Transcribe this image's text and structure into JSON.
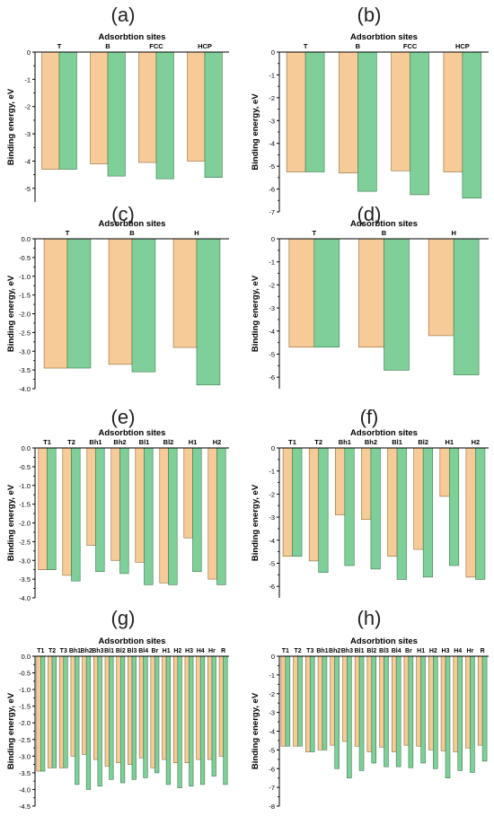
{
  "colors": {
    "bar_a": "#F7CB97",
    "bar_b": "#7FCF99",
    "bar_b_edge": "#3E7A50",
    "bar_a_edge": "#8A6A3A",
    "axis": "#000000"
  },
  "chart_data": [
    {
      "type": "bar",
      "panel_label": "(a)",
      "title": "Adsorbtion sites",
      "ylabel": "Binding energy, eV",
      "categories": [
        "T",
        "B",
        "FCC",
        "HCP"
      ],
      "ylim": [
        -5.5,
        0
      ],
      "yticks": [
        0,
        -1,
        -2,
        -3,
        -4,
        -5
      ],
      "series": [
        {
          "values": [
            -4.3,
            -4.1,
            -4.05,
            -4.0
          ]
        },
        {
          "values": [
            -4.3,
            -4.55,
            -4.65,
            -4.6
          ]
        }
      ]
    },
    {
      "type": "bar",
      "panel_label": "(b)",
      "title": "Adsorbtion sites",
      "ylabel": "Binding energy, eV",
      "categories": [
        "T",
        "B",
        "FCC",
        "HCP"
      ],
      "ylim": [
        -7,
        0
      ],
      "yticks": [
        0,
        -1,
        -2,
        -3,
        -4,
        -5,
        -6,
        -7
      ],
      "series": [
        {
          "values": [
            -5.25,
            -5.3,
            -5.2,
            -5.25
          ]
        },
        {
          "values": [
            -5.25,
            -6.1,
            -6.25,
            -6.4
          ]
        }
      ]
    },
    {
      "type": "bar",
      "panel_label": "(c)",
      "title": "Adsorbtion sites",
      "ylabel": "Binding energy, eV",
      "categories": [
        "T",
        "B",
        "H"
      ],
      "ylim": [
        -4.0,
        0
      ],
      "yticks": [
        0.0,
        -0.5,
        -1.0,
        -1.5,
        -2.0,
        -2.5,
        -3.0,
        -3.5,
        -4.0
      ],
      "series": [
        {
          "values": [
            -3.45,
            -3.35,
            -2.9
          ]
        },
        {
          "values": [
            -3.45,
            -3.55,
            -3.9
          ]
        }
      ]
    },
    {
      "type": "bar",
      "panel_label": "(d)",
      "title": "Adsorbtion sites",
      "ylabel": "Binding energy, eV",
      "categories": [
        "T",
        "B",
        "H"
      ],
      "ylim": [
        -6.5,
        0
      ],
      "yticks": [
        0,
        -1,
        -2,
        -3,
        -4,
        -5,
        -6
      ],
      "series": [
        {
          "values": [
            -4.7,
            -4.7,
            -4.2
          ]
        },
        {
          "values": [
            -4.7,
            -5.7,
            -5.9
          ]
        }
      ]
    },
    {
      "type": "bar",
      "panel_label": "(e)",
      "title": "Adsorbtion sites",
      "ylabel": "Binding energy, eV",
      "categories": [
        "T1",
        "T2",
        "Bh1",
        "Bh2",
        "Bl1",
        "Bl2",
        "H1",
        "H2"
      ],
      "ylim": [
        -4.0,
        0
      ],
      "yticks": [
        0.0,
        -0.5,
        -1.0,
        -1.5,
        -2.0,
        -2.5,
        -3.0,
        -3.5,
        -4.0
      ],
      "series": [
        {
          "values": [
            -3.25,
            -3.4,
            -2.6,
            -3.0,
            -3.05,
            -3.6,
            -2.4,
            -3.5
          ]
        },
        {
          "values": [
            -3.25,
            -3.55,
            -3.3,
            -3.35,
            -3.65,
            -3.65,
            -3.3,
            -3.65
          ]
        }
      ]
    },
    {
      "type": "bar",
      "panel_label": "(f)",
      "title": "Adsorbtion sites",
      "ylabel": "Binding energy, eV",
      "categories": [
        "T1",
        "T2",
        "Bh1",
        "Bh2",
        "Bl1",
        "Bl2",
        "H1",
        "H2"
      ],
      "ylim": [
        -6.5,
        0
      ],
      "yticks": [
        0,
        -1,
        -2,
        -3,
        -4,
        -5,
        -6
      ],
      "series": [
        {
          "values": [
            -4.7,
            -4.9,
            -2.9,
            -3.1,
            -4.7,
            -4.4,
            -2.1,
            -5.6
          ]
        },
        {
          "values": [
            -4.7,
            -5.4,
            -5.1,
            -5.25,
            -5.7,
            -5.6,
            -5.1,
            -5.7
          ]
        }
      ]
    },
    {
      "type": "bar",
      "panel_label": "(g)",
      "title": "Adsorbtion sites",
      "ylabel": "Binding energy, eV",
      "categories": [
        "T1",
        "T2",
        "T3",
        "Bh1",
        "Bh2",
        "Bh3",
        "Bl1",
        "Bl2",
        "Bl3",
        "Bl4",
        "Br",
        "H1",
        "H2",
        "H3",
        "H4",
        "Hr",
        "R"
      ],
      "ylim": [
        -4.5,
        0
      ],
      "yticks": [
        0.0,
        -0.5,
        -1.0,
        -1.5,
        -2.0,
        -2.5,
        -3.0,
        -3.5,
        -4.0,
        -4.5
      ],
      "series": [
        {
          "values": [
            -3.45,
            -3.35,
            -3.35,
            -3.0,
            -2.95,
            -3.1,
            -3.3,
            -3.2,
            -3.25,
            -3.05,
            -3.35,
            -3.1,
            -3.2,
            -3.2,
            -3.1,
            -3.1,
            -3.0
          ]
        },
        {
          "values": [
            -3.45,
            -3.35,
            -3.35,
            -3.85,
            -4.0,
            -3.9,
            -3.7,
            -3.8,
            -3.7,
            -3.65,
            -3.5,
            -3.85,
            -3.95,
            -3.9,
            -3.85,
            -3.6,
            -3.85
          ]
        }
      ]
    },
    {
      "type": "bar",
      "panel_label": "(h)",
      "title": "Adsorbtion sites",
      "ylabel": "Binding energy, eV",
      "categories": [
        "T1",
        "T2",
        "T3",
        "Bh1",
        "Bh2",
        "Bh3",
        "Bl1",
        "Bl2",
        "Bl3",
        "Bl4",
        "Br",
        "H1",
        "H2",
        "H3",
        "H4",
        "Hr",
        "R"
      ],
      "ylim": [
        -8,
        0
      ],
      "yticks": [
        0,
        -1,
        -2,
        -3,
        -4,
        -5,
        -6,
        -7,
        -8
      ],
      "series": [
        {
          "values": [
            -4.8,
            -4.8,
            -5.1,
            -5.0,
            -4.75,
            -4.55,
            -4.8,
            -5.1,
            -4.85,
            -5.1,
            -4.75,
            -4.8,
            -5.0,
            -5.05,
            -5.1,
            -4.9,
            -4.75
          ]
        },
        {
          "values": [
            -4.8,
            -4.8,
            -5.1,
            -5.0,
            -6.0,
            -6.5,
            -6.1,
            -5.7,
            -5.9,
            -5.9,
            -5.95,
            -5.7,
            -6.0,
            -6.5,
            -6.1,
            -6.2,
            -5.6
          ]
        }
      ]
    }
  ]
}
